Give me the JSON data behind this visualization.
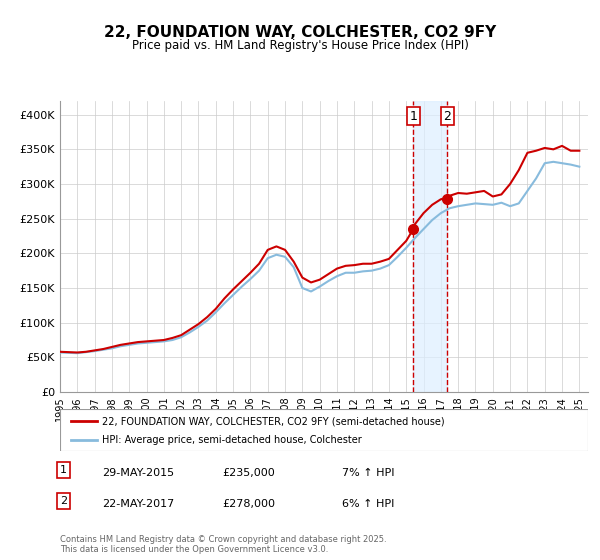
{
  "title": "22, FOUNDATION WAY, COLCHESTER, CO2 9FY",
  "subtitle": "Price paid vs. HM Land Registry's House Price Index (HPI)",
  "xlabel": "",
  "ylabel": "",
  "ylim": [
    0,
    420000
  ],
  "xlim": [
    1995,
    2025.5
  ],
  "yticks": [
    0,
    50000,
    100000,
    150000,
    200000,
    250000,
    300000,
    350000,
    400000
  ],
  "ytick_labels": [
    "£0",
    "£50K",
    "£100K",
    "£150K",
    "£200K",
    "£250K",
    "£300K",
    "£350K",
    "£400K"
  ],
  "xticks": [
    1995,
    1996,
    1997,
    1998,
    1999,
    2000,
    2001,
    2002,
    2003,
    2004,
    2005,
    2006,
    2007,
    2008,
    2009,
    2010,
    2011,
    2012,
    2013,
    2014,
    2015,
    2016,
    2017,
    2018,
    2019,
    2020,
    2021,
    2022,
    2023,
    2024,
    2025
  ],
  "red_color": "#cc0000",
  "blue_color": "#88bbdd",
  "purchase1_x": 2015.41,
  "purchase1_y": 235000,
  "purchase2_x": 2017.38,
  "purchase2_y": 278000,
  "shade_x1": 2015.41,
  "shade_x2": 2017.38,
  "vline1_x": 2015.41,
  "vline2_x": 2017.38,
  "legend_label_red": "22, FOUNDATION WAY, COLCHESTER, CO2 9FY (semi-detached house)",
  "legend_label_blue": "HPI: Average price, semi-detached house, Colchester",
  "annotation1_label": "1",
  "annotation2_label": "2",
  "annotation1_date": "29-MAY-2015",
  "annotation1_price": "£235,000",
  "annotation1_hpi": "7% ↑ HPI",
  "annotation2_date": "22-MAY-2017",
  "annotation2_price": "£278,000",
  "annotation2_hpi": "6% ↑ HPI",
  "footer": "Contains HM Land Registry data © Crown copyright and database right 2025.\nThis data is licensed under the Open Government Licence v3.0.",
  "red_line": {
    "x": [
      1995.0,
      1995.5,
      1996.0,
      1996.5,
      1997.0,
      1997.5,
      1998.0,
      1998.5,
      1999.0,
      1999.5,
      2000.0,
      2000.5,
      2001.0,
      2001.5,
      2002.0,
      2002.5,
      2003.0,
      2003.5,
      2004.0,
      2004.5,
      2005.0,
      2005.5,
      2006.0,
      2006.5,
      2007.0,
      2007.5,
      2008.0,
      2008.5,
      2009.0,
      2009.5,
      2010.0,
      2010.5,
      2011.0,
      2011.5,
      2012.0,
      2012.5,
      2013.0,
      2013.5,
      2014.0,
      2014.5,
      2015.0,
      2015.41,
      2015.5,
      2016.0,
      2016.5,
      2017.0,
      2017.38,
      2017.5,
      2018.0,
      2018.5,
      2019.0,
      2019.5,
      2020.0,
      2020.5,
      2021.0,
      2021.5,
      2022.0,
      2022.5,
      2023.0,
      2023.5,
      2024.0,
      2024.5,
      2025.0
    ],
    "y": [
      58000,
      57500,
      57000,
      58000,
      60000,
      62000,
      65000,
      68000,
      70000,
      72000,
      73000,
      74000,
      75000,
      78000,
      82000,
      90000,
      98000,
      108000,
      120000,
      135000,
      148000,
      160000,
      172000,
      185000,
      205000,
      210000,
      205000,
      188000,
      165000,
      158000,
      162000,
      170000,
      178000,
      182000,
      183000,
      185000,
      185000,
      188000,
      192000,
      205000,
      218000,
      235000,
      242000,
      258000,
      270000,
      278000,
      280000,
      283000,
      287000,
      286000,
      288000,
      290000,
      282000,
      285000,
      300000,
      320000,
      345000,
      348000,
      352000,
      350000,
      355000,
      348000,
      348000
    ]
  },
  "blue_line": {
    "x": [
      1995.0,
      1995.5,
      1996.0,
      1996.5,
      1997.0,
      1997.5,
      1998.0,
      1998.5,
      1999.0,
      1999.5,
      2000.0,
      2000.5,
      2001.0,
      2001.5,
      2002.0,
      2002.5,
      2003.0,
      2003.5,
      2004.0,
      2004.5,
      2005.0,
      2005.5,
      2006.0,
      2006.5,
      2007.0,
      2007.5,
      2008.0,
      2008.5,
      2009.0,
      2009.5,
      2010.0,
      2010.5,
      2011.0,
      2011.5,
      2012.0,
      2012.5,
      2013.0,
      2013.5,
      2014.0,
      2014.5,
      2015.0,
      2015.5,
      2016.0,
      2016.5,
      2017.0,
      2017.5,
      2018.0,
      2018.5,
      2019.0,
      2019.5,
      2020.0,
      2020.5,
      2021.0,
      2021.5,
      2022.0,
      2022.5,
      2023.0,
      2023.5,
      2024.0,
      2024.5,
      2025.0
    ],
    "y": [
      57000,
      56500,
      56000,
      57500,
      59000,
      61000,
      63000,
      66000,
      68000,
      70000,
      71000,
      72000,
      73000,
      75000,
      79000,
      86000,
      94000,
      103000,
      115000,
      128000,
      140000,
      152000,
      163000,
      175000,
      193000,
      198000,
      195000,
      180000,
      150000,
      145000,
      152000,
      160000,
      167000,
      172000,
      172000,
      174000,
      175000,
      178000,
      183000,
      195000,
      208000,
      222000,
      235000,
      248000,
      258000,
      265000,
      268000,
      270000,
      272000,
      271000,
      270000,
      273000,
      268000,
      272000,
      290000,
      308000,
      330000,
      332000,
      330000,
      328000,
      325000
    ]
  }
}
